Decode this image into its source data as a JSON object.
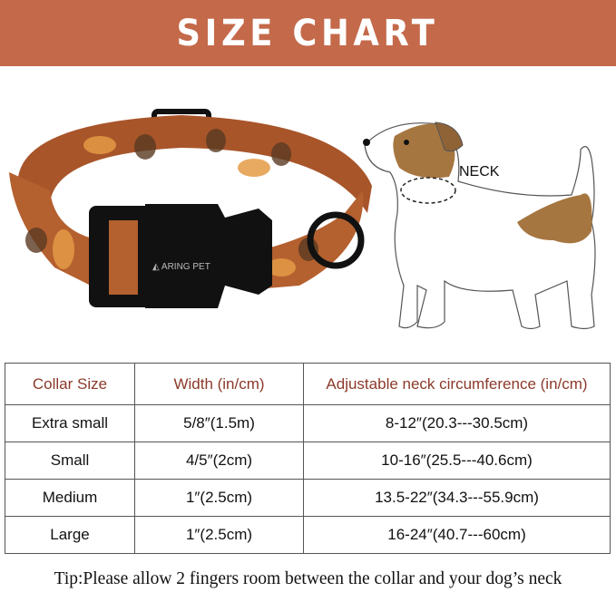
{
  "banner": {
    "title": "SIZE CHART",
    "color": "#c4694a"
  },
  "product": {
    "brand_logo": "CARING PET",
    "collar_color": "#b4602f"
  },
  "diagram": {
    "neck_label": "NECK"
  },
  "table": {
    "headers": [
      "Collar Size",
      "Width (in/cm)",
      "Adjustable neck circumference (in/cm)"
    ],
    "rows": [
      [
        "Extra small",
        "5/8″(1.5m)",
        "8-12″(20.3---30.5cm)"
      ],
      [
        "Small",
        "4/5″(2cm)",
        "10-16″(25.5---40.6cm)"
      ],
      [
        "Medium",
        "1″(2.5cm)",
        "13.5-22″(34.3---55.9cm)"
      ],
      [
        "Large",
        "1″(2.5cm)",
        "16-24″(40.7---60cm)"
      ]
    ]
  },
  "tip": "Tip:Please allow 2 fingers room between the collar and your dog’s neck"
}
